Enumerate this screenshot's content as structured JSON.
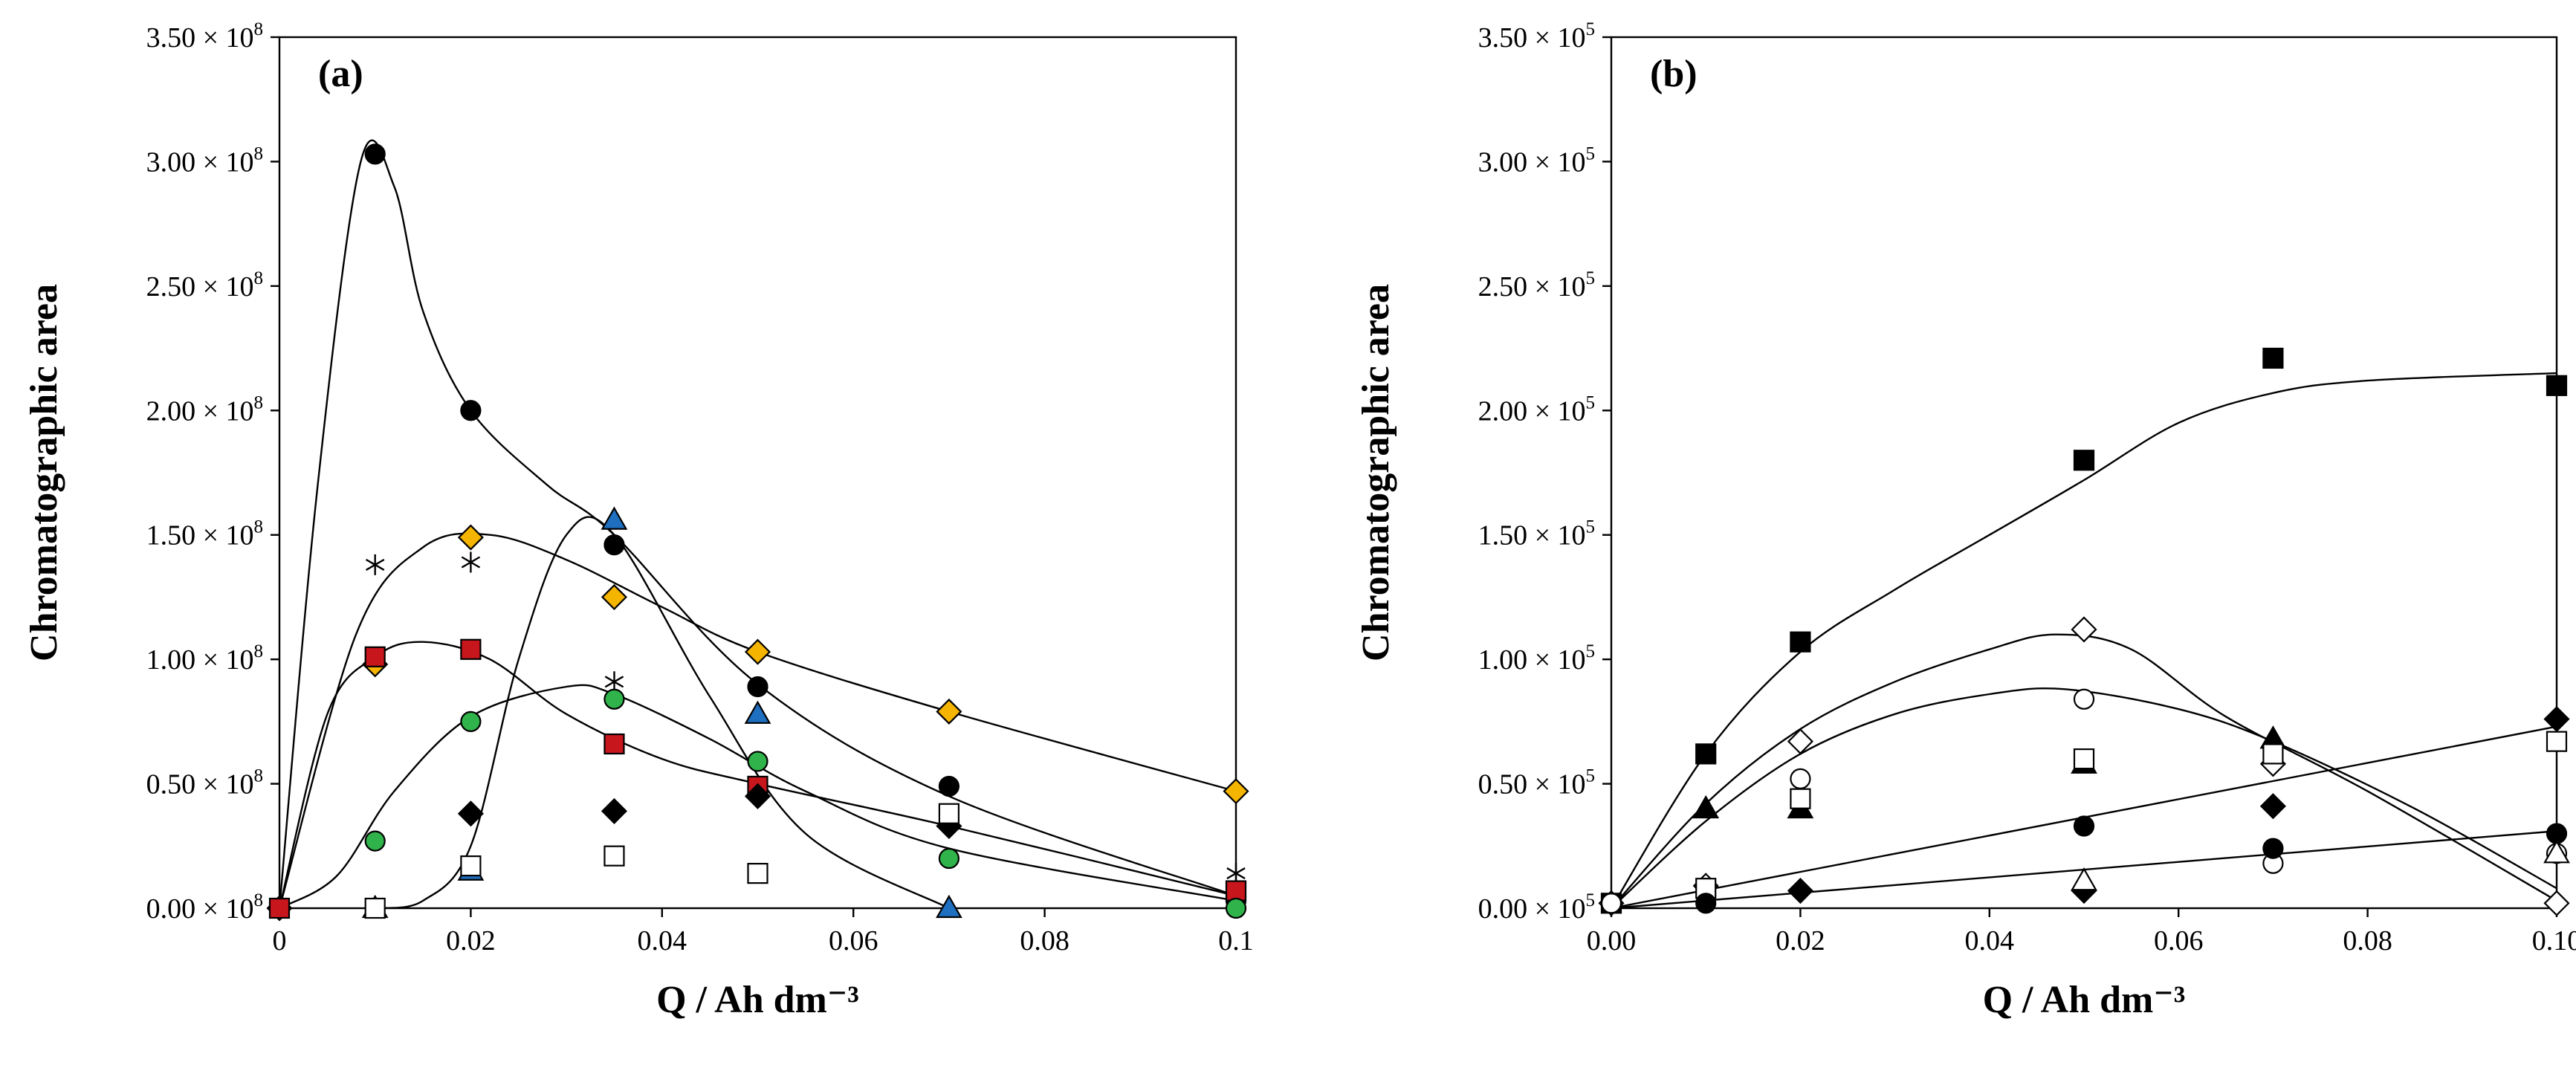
{
  "chart_data": [
    {
      "type": "scatter",
      "panel": "(a)",
      "xlabel": "Q / Ah dm⁻³",
      "ylabel": "Chromatographic area",
      "xlim": [
        0,
        0.1
      ],
      "ylim": [
        0,
        350000000
      ],
      "x_ticks": [
        {
          "value": 0,
          "label": "0"
        },
        {
          "value": 0.02,
          "label": "0.02"
        },
        {
          "value": 0.04,
          "label": "0.04"
        },
        {
          "value": 0.06,
          "label": "0.06"
        },
        {
          "value": 0.08,
          "label": "0.08"
        },
        {
          "value": 0.1,
          "label": "0.1"
        }
      ],
      "y_ticks": [
        {
          "value": 0,
          "mant": "0.00",
          "exp": "8"
        },
        {
          "value": 50000000,
          "mant": "0.50",
          "exp": "8"
        },
        {
          "value": 100000000,
          "mant": "1.00",
          "exp": "8"
        },
        {
          "value": 150000000,
          "mant": "1.50",
          "exp": "8"
        },
        {
          "value": 200000000,
          "mant": "2.00",
          "exp": "8"
        },
        {
          "value": 250000000,
          "mant": "2.50",
          "exp": "8"
        },
        {
          "value": 300000000,
          "mant": "3.00",
          "exp": "8"
        },
        {
          "value": 350000000,
          "mant": "3.50",
          "exp": "8"
        }
      ],
      "tick_times": "×",
      "tick_base": "10",
      "series": [
        {
          "name": "black-circle",
          "marker": "circle",
          "fill": "#000000",
          "x": [
            0,
            0.01,
            0.02,
            0.035,
            0.05,
            0.07,
            0.1
          ],
          "y": [
            0,
            303000000,
            200000000,
            146000000,
            89000000,
            49000000,
            3000000
          ]
        },
        {
          "name": "yellow-diamond",
          "marker": "diamond",
          "fill": "#f5b400",
          "x": [
            0,
            0.01,
            0.02,
            0.035,
            0.05,
            0.07,
            0.1
          ],
          "y": [
            0,
            98000000,
            149000000,
            125000000,
            103000000,
            79000000,
            47000000
          ]
        },
        {
          "name": "asterisk",
          "marker": "star",
          "fill": "#000000",
          "x": [
            0.01,
            0.02,
            0.035,
            0.1
          ],
          "y": [
            138000000,
            139000000,
            91000000,
            14000000
          ]
        },
        {
          "name": "red-square",
          "marker": "square",
          "fill": "#c8161d",
          "x": [
            0,
            0.01,
            0.02,
            0.035,
            0.05,
            0.1
          ],
          "y": [
            0,
            101000000,
            104000000,
            66000000,
            49000000,
            7000000
          ]
        },
        {
          "name": "green-circle",
          "marker": "circle",
          "fill": "#2fb34a",
          "x": [
            0.01,
            0.02,
            0.035,
            0.05,
            0.07,
            0.1
          ],
          "y": [
            27000000,
            75000000,
            84000000,
            59000000,
            20000000,
            0
          ]
        },
        {
          "name": "blue-triangle",
          "marker": "triangle",
          "fill": "#1e6fbf",
          "x": [
            0.01,
            0.02,
            0.035,
            0.05,
            0.07
          ],
          "y": [
            0,
            15000000,
            156000000,
            78000000,
            0
          ]
        },
        {
          "name": "black-diamond",
          "marker": "diamond",
          "fill": "#000000",
          "x": [
            0.02,
            0.035,
            0.05,
            0.07
          ],
          "y": [
            38000000,
            39000000,
            45000000,
            33000000
          ]
        },
        {
          "name": "open-square",
          "marker": "square",
          "fill": "#ffffff",
          "x": [
            0.01,
            0.02,
            0.035,
            0.05,
            0.07
          ],
          "y": [
            0,
            17000000,
            21000000,
            14000000,
            38000000
          ]
        }
      ],
      "curves": [
        {
          "name": "black-circle-fit",
          "x": [
            0,
            0.004,
            0.0085,
            0.012,
            0.015,
            0.02,
            0.028,
            0.035,
            0.05,
            0.07,
            0.1
          ],
          "y": [
            0,
            170000000,
            300000000,
            290000000,
            240000000,
            200000000,
            170000000,
            150000000,
            90000000,
            45000000,
            5000000
          ]
        },
        {
          "name": "yellow-diamond-fit",
          "x": [
            0,
            0.008,
            0.015,
            0.022,
            0.03,
            0.04,
            0.05,
            0.07,
            0.1
          ],
          "y": [
            0,
            110000000,
            145000000,
            150000000,
            140000000,
            121000000,
            103000000,
            79000000,
            47000000
          ]
        },
        {
          "name": "red-square-fit",
          "x": [
            0,
            0.005,
            0.01,
            0.015,
            0.022,
            0.03,
            0.04,
            0.05,
            0.07,
            0.1
          ],
          "y": [
            0,
            78000000,
            101000000,
            107000000,
            100000000,
            78000000,
            60000000,
            50000000,
            33000000,
            5000000
          ]
        },
        {
          "name": "green-circle-fit",
          "x": [
            0,
            0.006,
            0.012,
            0.02,
            0.03,
            0.035,
            0.045,
            0.055,
            0.07,
            0.1
          ],
          "y": [
            0,
            13000000,
            47000000,
            77000000,
            89000000,
            86000000,
            68000000,
            47000000,
            24000000,
            3000000
          ]
        },
        {
          "name": "blue-triangle-fit",
          "x": [
            0.01,
            0.015,
            0.02,
            0.025,
            0.03,
            0.035,
            0.045,
            0.055,
            0.07
          ],
          "y": [
            0,
            3000000,
            25000000,
            100000000,
            150000000,
            150000000,
            85000000,
            30000000,
            0
          ]
        }
      ]
    },
    {
      "type": "scatter",
      "panel": "(b)",
      "xlabel": "Q / Ah dm⁻³",
      "ylabel": "Chromatographic area",
      "xlim": [
        0,
        0.1
      ],
      "ylim": [
        0,
        350000
      ],
      "x_ticks": [
        {
          "value": 0,
          "label": "0.00"
        },
        {
          "value": 0.02,
          "label": "0.02"
        },
        {
          "value": 0.04,
          "label": "0.04"
        },
        {
          "value": 0.06,
          "label": "0.06"
        },
        {
          "value": 0.08,
          "label": "0.08"
        },
        {
          "value": 0.1,
          "label": "0.10"
        }
      ],
      "y_ticks": [
        {
          "value": 0,
          "mant": "0.00",
          "exp": "5"
        },
        {
          "value": 50000,
          "mant": "0.50",
          "exp": "5"
        },
        {
          "value": 100000,
          "mant": "1.00",
          "exp": "5"
        },
        {
          "value": 150000,
          "mant": "1.50",
          "exp": "5"
        },
        {
          "value": 200000,
          "mant": "2.00",
          "exp": "5"
        },
        {
          "value": 250000,
          "mant": "2.50",
          "exp": "5"
        },
        {
          "value": 300000,
          "mant": "3.00",
          "exp": "5"
        },
        {
          "value": 350000,
          "mant": "3.50",
          "exp": "5"
        }
      ],
      "tick_times": "×",
      "tick_base": "10",
      "series": [
        {
          "name": "black-square",
          "marker": "square",
          "fill": "#000000",
          "x": [
            0,
            0.01,
            0.02,
            0.05,
            0.07,
            0.1
          ],
          "y": [
            2000,
            62000,
            107000,
            180000,
            221000,
            210000
          ]
        },
        {
          "name": "open-diamond",
          "marker": "diamond",
          "fill": "#ffffff",
          "x": [
            0,
            0.01,
            0.02,
            0.05,
            0.07,
            0.1
          ],
          "y": [
            2000,
            9000,
            67000,
            112000,
            58000,
            2000
          ]
        },
        {
          "name": "open-circle",
          "marker": "circle",
          "fill": "#ffffff",
          "x": [
            0,
            0.01,
            0.02,
            0.05,
            0.07,
            0.1
          ],
          "y": [
            2000,
            8000,
            52000,
            84000,
            18000,
            22000
          ]
        },
        {
          "name": "black-triangle",
          "marker": "triangle",
          "fill": "#000000",
          "x": [
            0.01,
            0.02,
            0.05,
            0.07
          ],
          "y": [
            40000,
            40000,
            58000,
            68000
          ]
        },
        {
          "name": "open-square",
          "marker": "square",
          "fill": "#ffffff",
          "x": [
            0.01,
            0.02,
            0.05,
            0.07,
            0.1
          ],
          "y": [
            8000,
            44000,
            60000,
            62000,
            67000
          ]
        },
        {
          "name": "black-circle",
          "marker": "circle",
          "fill": "#000000",
          "x": [
            0.01,
            0.05,
            0.07,
            0.1
          ],
          "y": [
            2000,
            33000,
            24000,
            30000
          ]
        },
        {
          "name": "black-diamond",
          "marker": "diamond",
          "fill": "#000000",
          "x": [
            0.02,
            0.05,
            0.07,
            0.1
          ],
          "y": [
            7000,
            7000,
            41000,
            76000
          ]
        },
        {
          "name": "open-triangle",
          "marker": "triangle",
          "fill": "#ffffff",
          "x": [
            0.05,
            0.1
          ],
          "y": [
            11000,
            22000
          ]
        }
      ],
      "curves": [
        {
          "name": "black-square-fit",
          "x": [
            0,
            0.01,
            0.02,
            0.03,
            0.04,
            0.05,
            0.06,
            0.07,
            0.08,
            0.1
          ],
          "y": [
            0,
            62000,
            103000,
            128000,
            150000,
            172000,
            195000,
            207000,
            212000,
            215000
          ]
        },
        {
          "name": "open-diamond-fit",
          "x": [
            0,
            0.01,
            0.02,
            0.03,
            0.04,
            0.047,
            0.055,
            0.065,
            0.08,
            0.1
          ],
          "y": [
            0,
            42000,
            72000,
            91000,
            104000,
            110000,
            104000,
            77000,
            47000,
            3000
          ]
        },
        {
          "name": "open-circle-fit",
          "x": [
            0,
            0.01,
            0.02,
            0.03,
            0.04,
            0.048,
            0.06,
            0.07,
            0.085,
            0.1
          ],
          "y": [
            0,
            35000,
            62000,
            78000,
            86000,
            88000,
            80000,
            67000,
            40000,
            8000
          ]
        },
        {
          "name": "linear-fit-diamond",
          "x": [
            0,
            0.1
          ],
          "y": [
            0,
            73000
          ]
        },
        {
          "name": "linear-fit-circle",
          "x": [
            0,
            0.1
          ],
          "y": [
            0,
            31000
          ]
        }
      ]
    }
  ]
}
